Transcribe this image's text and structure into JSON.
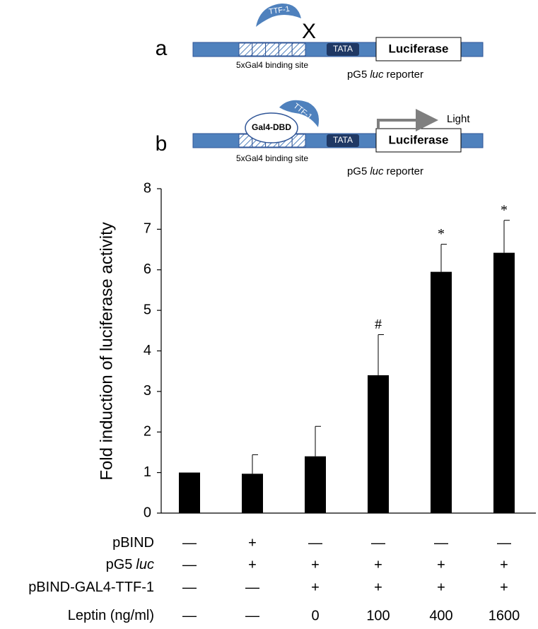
{
  "diagram": {
    "panels": [
      {
        "letter": "a",
        "protein": "TTF-1",
        "block": "X",
        "tata": "TATA",
        "reporter_gene": "Luciferase",
        "binding_site": "5xGal4 binding site",
        "reporter_parts": [
          "pG5",
          "luc",
          "reporter"
        ]
      },
      {
        "letter": "b",
        "protein": "TTF-1",
        "dbd": "Gal4-DBD",
        "output": "Light",
        "tata": "TATA",
        "reporter_gene": "Luciferase",
        "binding_site": "5xGal4 binding site",
        "reporter_parts": [
          "pG5",
          "luc",
          "reporter"
        ]
      }
    ]
  },
  "chart_data": {
    "type": "bar",
    "ylabel": "Fold induction of luciferase activity",
    "categories": [
      null,
      null,
      null,
      null,
      null,
      null
    ],
    "values": [
      1.0,
      0.97,
      1.4,
      3.4,
      5.95,
      6.42
    ],
    "errors": [
      null,
      0.47,
      0.74,
      1.0,
      0.68,
      0.8
    ],
    "annotations": [
      null,
      null,
      null,
      "#",
      "*",
      "*"
    ],
    "color": "#000000",
    "ylim": [
      0,
      8
    ],
    "yticks": [
      0,
      1,
      2,
      3,
      4,
      5,
      6,
      7,
      8
    ],
    "conditions": [
      {
        "label_parts": [
          "pBIND"
        ],
        "cells": [
          "—",
          "+",
          "—",
          "—",
          "—",
          "—"
        ]
      },
      {
        "label_parts": [
          "pG5",
          "luc"
        ],
        "cells": [
          "—",
          "+",
          "+",
          "+",
          "+",
          "+"
        ]
      },
      {
        "label_parts": [
          "pBIND-GAL4-TTF-1"
        ],
        "cells": [
          "—",
          "—",
          "+",
          "+",
          "+",
          "+"
        ]
      },
      {
        "label_parts": [
          "Leptin (ng/ml)"
        ],
        "cells": [
          "—",
          "—",
          "0",
          "100",
          "400",
          "1600"
        ]
      }
    ]
  }
}
